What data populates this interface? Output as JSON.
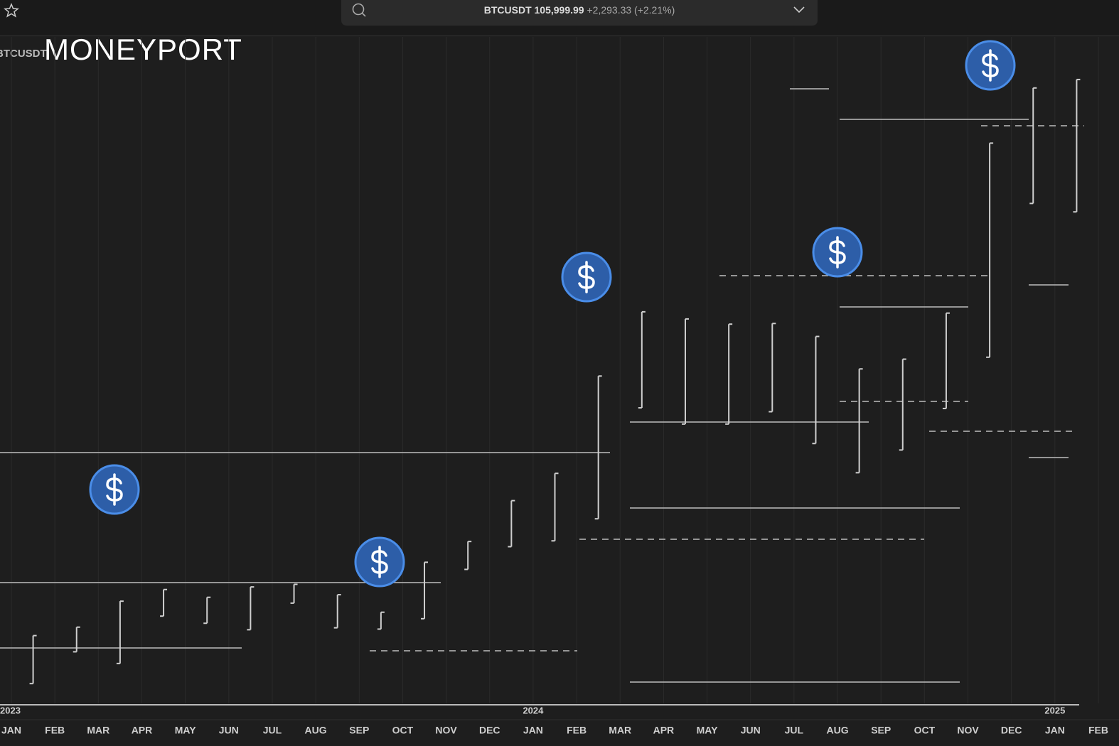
{
  "header": {
    "ticker": "BTCUSDT",
    "price": "105,999.99",
    "change": "+2,293.33",
    "change_pct": "(+2.21%)"
  },
  "logo": "MONEYPORT",
  "symbol_label": "BTCUSDT",
  "chart_data": {
    "type": "range",
    "categories": [
      "JAN",
      "FEB",
      "MAR",
      "APR",
      "MAY",
      "JUN",
      "JUL",
      "AUG",
      "SEP",
      "OCT",
      "NOV",
      "DEC",
      "JAN",
      "FEB",
      "MAR",
      "APR",
      "MAY",
      "JUN",
      "JUL",
      "AUG",
      "SEP",
      "OCT",
      "NOV",
      "DEC",
      "JAN",
      "FEB"
    ],
    "year_labels": [
      "2023",
      "2024",
      "2025"
    ],
    "lows": [
      16500,
      21400,
      19600,
      26900,
      25800,
      24800,
      28900,
      25100,
      24900,
      26500,
      34100,
      37600,
      38500,
      41900,
      59000,
      56500,
      56500,
      58400,
      53500,
      49000,
      52500,
      58900,
      66800,
      90500,
      89200,
      null
    ],
    "highs": [
      23900,
      25200,
      29200,
      31000,
      29800,
      31400,
      31800,
      30200,
      27500,
      35200,
      38400,
      44700,
      48900,
      63900,
      73800,
      72700,
      71900,
      72000,
      70000,
      65000,
      66500,
      73600,
      99800,
      108300,
      109600,
      null
    ],
    "color": "#cfcfcf",
    "ylim": [
      14000,
      112000
    ]
  }
}
